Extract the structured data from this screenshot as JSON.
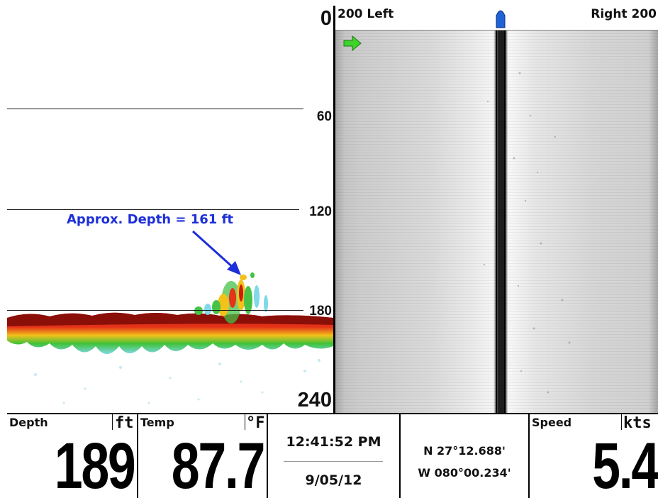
{
  "sonar": {
    "depth_labels": [
      "0",
      "60",
      "120",
      "180",
      "240"
    ],
    "annotation": "Approx. Depth = 161 ft"
  },
  "side_imaging": {
    "left_label": "200 Left",
    "right_label": "Right 200"
  },
  "databar": {
    "depth": {
      "title": "Depth",
      "unit": "ft",
      "value": "189"
    },
    "temp": {
      "title": "Temp",
      "unit": "°F",
      "value": "87.7"
    },
    "time": "12:41:52 PM",
    "date": "9/05/12",
    "lat": "N 27°12.688'",
    "lon": "W 080°00.234'",
    "speed": {
      "title": "Speed",
      "unit": "kts",
      "value": "5.4"
    }
  },
  "colors": {
    "annotation": "#1d2fd8",
    "boat_marker": "#1f62d6",
    "start_arrow": "#3fd22b"
  },
  "icons": [
    "boat-position-icon",
    "start-arrow-icon",
    "annotation-arrow-icon"
  ]
}
